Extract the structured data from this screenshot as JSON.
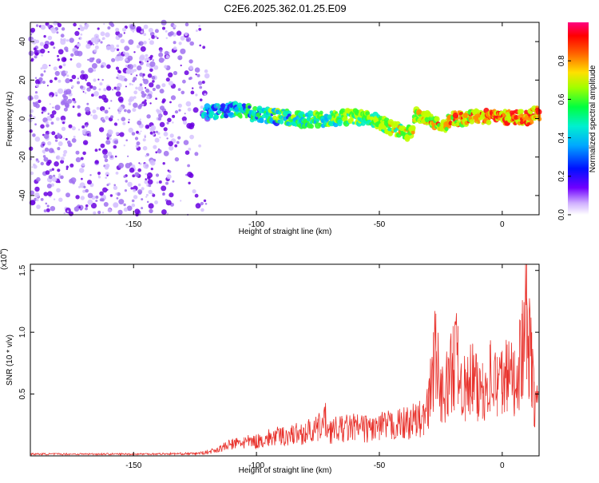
{
  "title": "C2E6.2025.362.01.25.E09",
  "colors": {
    "snr_line": "#e8302a",
    "axis": "#000000",
    "background": "#ffffff",
    "noise_points": "#8a2be2",
    "colormap": [
      "#ffffff",
      "#c8a8ff",
      "#6a00ff",
      "#0000ff",
      "#00d0ff",
      "#00ff80",
      "#80ff00",
      "#ffff00",
      "#ff8000",
      "#ff0000",
      "#ff0080"
    ]
  },
  "chart_data": [
    {
      "type": "heatmap",
      "xlabel": "Height of straight line (km)",
      "ylabel": "Frequency (Hz)",
      "xlim": [
        -192,
        15
      ],
      "ylim": [
        -50,
        50
      ],
      "xticks": [
        -150,
        -100,
        -50,
        0
      ],
      "yticks": [
        -40,
        -20,
        0,
        20,
        40
      ],
      "noise_region": {
        "x": [
          -192,
          -120
        ],
        "y": [
          -50,
          50
        ]
      },
      "signal_track": {
        "x": [
          -120,
          -110,
          -100,
          -90,
          -80,
          -70,
          -60,
          -50,
          -45,
          -40,
          -37,
          -35,
          -30,
          -25,
          -20,
          -10,
          0,
          10,
          15
        ],
        "y": [
          3,
          5,
          2,
          1,
          -1,
          0,
          1,
          -2,
          -5,
          -7,
          -8,
          2,
          0,
          -5,
          0,
          1,
          1,
          0,
          3
        ]
      },
      "colorbar": {
        "label": "Normalized spectral amplitude",
        "range": [
          0,
          1
        ],
        "ticks": [
          "0.0",
          "0.2",
          "0.4",
          "0.6",
          "0.8"
        ]
      }
    },
    {
      "type": "line",
      "xlabel": "Height of straight line (km)",
      "ylabel": "SNR (10 * v/v)",
      "multiplier_label": "(x10",
      "multiplier_exp": "4",
      "multiplier_close": ")",
      "xlim": [
        -192,
        15
      ],
      "ylim": [
        0,
        1.55
      ],
      "xticks": [
        -150,
        -100,
        -50,
        0
      ],
      "yticks": [
        "0.5",
        "1.0",
        "1.5"
      ],
      "yticks_values": [
        0.5,
        1.0,
        1.5
      ],
      "series": [
        {
          "x": [
            -192,
            -150,
            -125,
            -120,
            -115,
            -110,
            -105,
            -100,
            -95,
            -90,
            -85,
            -80,
            -75,
            -72,
            -70,
            -65,
            -60,
            -55,
            -50,
            -45,
            -40,
            -35,
            -32,
            -30,
            -28,
            -27,
            -25,
            -22,
            -20,
            -18,
            -15,
            -12,
            -10,
            -8,
            -5,
            -2,
            0,
            2,
            5,
            8,
            10,
            11,
            12,
            13,
            15
          ],
          "y": [
            0.02,
            0.02,
            0.025,
            0.04,
            0.08,
            0.13,
            0.15,
            0.16,
            0.2,
            0.22,
            0.24,
            0.26,
            0.3,
            0.4,
            0.28,
            0.3,
            0.32,
            0.3,
            0.32,
            0.34,
            0.36,
            0.4,
            0.42,
            0.55,
            1.0,
            1.15,
            0.7,
            0.8,
            1.05,
            1.05,
            0.7,
            0.9,
            0.7,
            0.75,
            0.9,
            0.8,
            0.85,
            0.9,
            0.85,
            1.15,
            1.55,
            1.2,
            1.0,
            0.6,
            0.5
          ]
        }
      ]
    }
  ]
}
